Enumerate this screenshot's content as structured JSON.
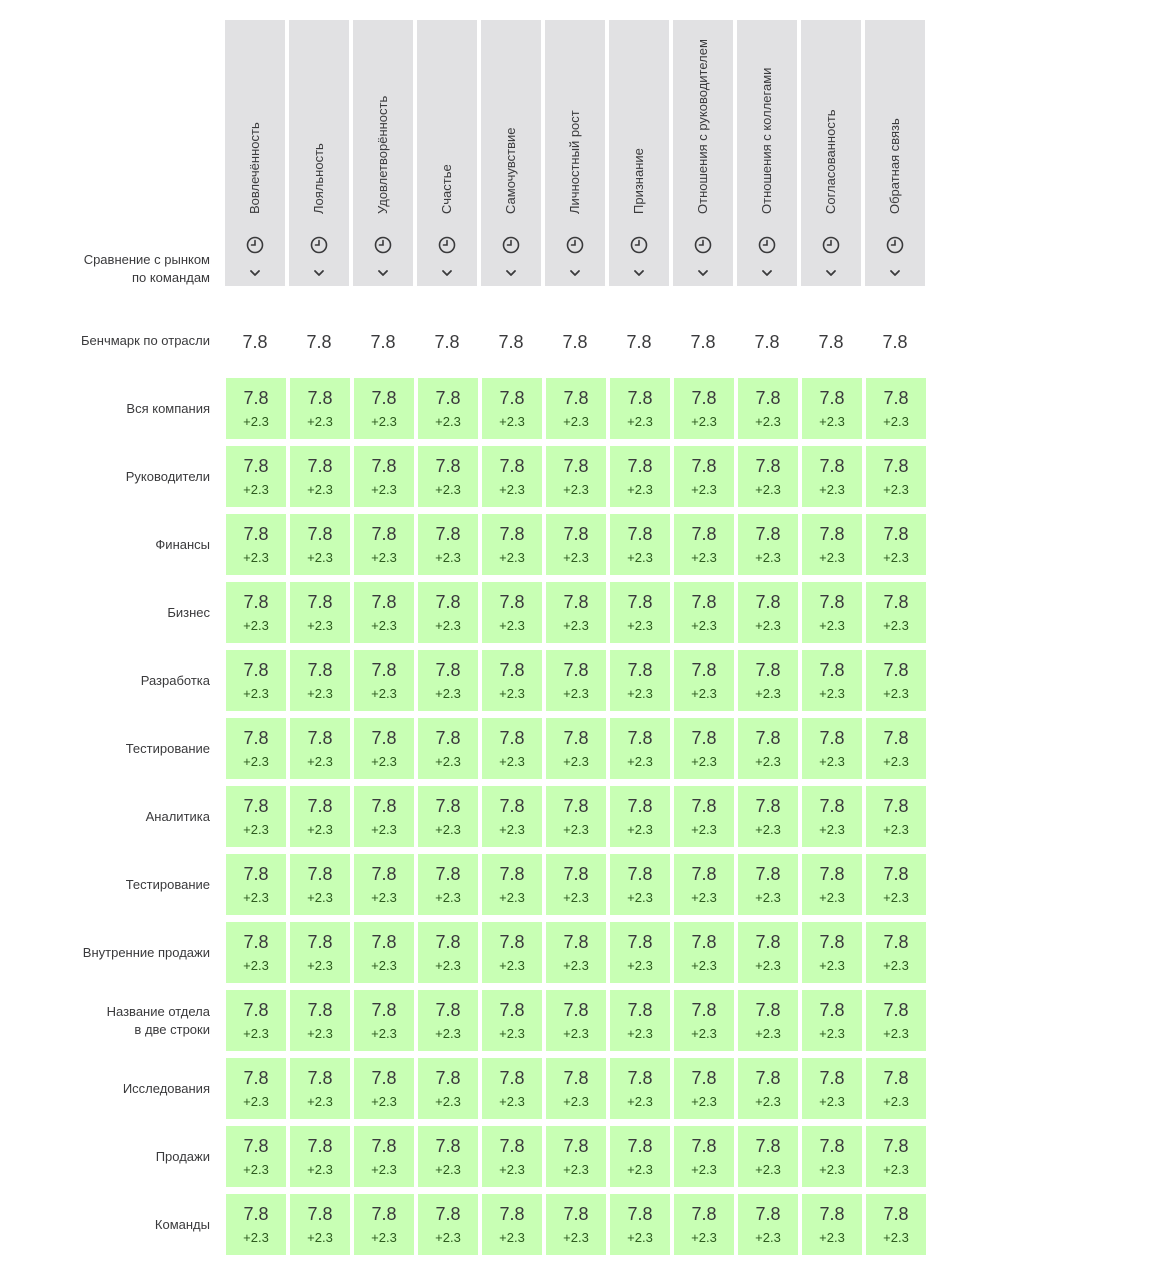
{
  "corner_label": "Сравнение с рынком\nпо командам",
  "columns": [
    "Вовлечённость",
    "Лояльность",
    "Удовлетворённость",
    "Счастье",
    "Самочувствие",
    "Личностный рост",
    "Признание",
    "Отношения с руководителем",
    "Отношения с коллегами",
    "Согласованность",
    "Обратная связь"
  ],
  "column_icons": [
    "clock-icon",
    "chevron-down-icon"
  ],
  "benchmark": {
    "label": "Бенчмарк по отрасли",
    "values": [
      "7.8",
      "7.8",
      "7.8",
      "7.8",
      "7.8",
      "7.8",
      "7.8",
      "7.8",
      "7.8",
      "7.8",
      "7.8"
    ]
  },
  "rows": [
    {
      "label": "Вся компания",
      "cells": [
        {
          "v": "7.8",
          "d": "+2.3"
        },
        {
          "v": "7.8",
          "d": "+2.3"
        },
        {
          "v": "7.8",
          "d": "+2.3"
        },
        {
          "v": "7.8",
          "d": "+2.3"
        },
        {
          "v": "7.8",
          "d": "+2.3"
        },
        {
          "v": "7.8",
          "d": "+2.3"
        },
        {
          "v": "7.8",
          "d": "+2.3"
        },
        {
          "v": "7.8",
          "d": "+2.3"
        },
        {
          "v": "7.8",
          "d": "+2.3"
        },
        {
          "v": "7.8",
          "d": "+2.3"
        },
        {
          "v": "7.8",
          "d": "+2.3"
        }
      ]
    },
    {
      "label": "Руководители",
      "cells": [
        {
          "v": "7.8",
          "d": "+2.3"
        },
        {
          "v": "7.8",
          "d": "+2.3"
        },
        {
          "v": "7.8",
          "d": "+2.3"
        },
        {
          "v": "7.8",
          "d": "+2.3"
        },
        {
          "v": "7.8",
          "d": "+2.3"
        },
        {
          "v": "7.8",
          "d": "+2.3"
        },
        {
          "v": "7.8",
          "d": "+2.3"
        },
        {
          "v": "7.8",
          "d": "+2.3"
        },
        {
          "v": "7.8",
          "d": "+2.3"
        },
        {
          "v": "7.8",
          "d": "+2.3"
        },
        {
          "v": "7.8",
          "d": "+2.3"
        }
      ]
    },
    {
      "label": "Финансы",
      "cells": [
        {
          "v": "7.8",
          "d": "+2.3"
        },
        {
          "v": "7.8",
          "d": "+2.3"
        },
        {
          "v": "7.8",
          "d": "+2.3"
        },
        {
          "v": "7.8",
          "d": "+2.3"
        },
        {
          "v": "7.8",
          "d": "+2.3"
        },
        {
          "v": "7.8",
          "d": "+2.3"
        },
        {
          "v": "7.8",
          "d": "+2.3"
        },
        {
          "v": "7.8",
          "d": "+2.3"
        },
        {
          "v": "7.8",
          "d": "+2.3"
        },
        {
          "v": "7.8",
          "d": "+2.3"
        },
        {
          "v": "7.8",
          "d": "+2.3"
        }
      ]
    },
    {
      "label": "Бизнес",
      "cells": [
        {
          "v": "7.8",
          "d": "+2.3"
        },
        {
          "v": "7.8",
          "d": "+2.3"
        },
        {
          "v": "7.8",
          "d": "+2.3"
        },
        {
          "v": "7.8",
          "d": "+2.3"
        },
        {
          "v": "7.8",
          "d": "+2.3"
        },
        {
          "v": "7.8",
          "d": "+2.3"
        },
        {
          "v": "7.8",
          "d": "+2.3"
        },
        {
          "v": "7.8",
          "d": "+2.3"
        },
        {
          "v": "7.8",
          "d": "+2.3"
        },
        {
          "v": "7.8",
          "d": "+2.3"
        },
        {
          "v": "7.8",
          "d": "+2.3"
        }
      ]
    },
    {
      "label": "Разработка",
      "cells": [
        {
          "v": "7.8",
          "d": "+2.3"
        },
        {
          "v": "7.8",
          "d": "+2.3"
        },
        {
          "v": "7.8",
          "d": "+2.3"
        },
        {
          "v": "7.8",
          "d": "+2.3"
        },
        {
          "v": "7.8",
          "d": "+2.3"
        },
        {
          "v": "7.8",
          "d": "+2.3"
        },
        {
          "v": "7.8",
          "d": "+2.3"
        },
        {
          "v": "7.8",
          "d": "+2.3"
        },
        {
          "v": "7.8",
          "d": "+2.3"
        },
        {
          "v": "7.8",
          "d": "+2.3"
        },
        {
          "v": "7.8",
          "d": "+2.3"
        }
      ]
    },
    {
      "label": "Тестирование",
      "cells": [
        {
          "v": "7.8",
          "d": "+2.3"
        },
        {
          "v": "7.8",
          "d": "+2.3"
        },
        {
          "v": "7.8",
          "d": "+2.3"
        },
        {
          "v": "7.8",
          "d": "+2.3"
        },
        {
          "v": "7.8",
          "d": "+2.3"
        },
        {
          "v": "7.8",
          "d": "+2.3"
        },
        {
          "v": "7.8",
          "d": "+2.3"
        },
        {
          "v": "7.8",
          "d": "+2.3"
        },
        {
          "v": "7.8",
          "d": "+2.3"
        },
        {
          "v": "7.8",
          "d": "+2.3"
        },
        {
          "v": "7.8",
          "d": "+2.3"
        }
      ]
    },
    {
      "label": "Аналитика",
      "cells": [
        {
          "v": "7.8",
          "d": "+2.3"
        },
        {
          "v": "7.8",
          "d": "+2.3"
        },
        {
          "v": "7.8",
          "d": "+2.3"
        },
        {
          "v": "7.8",
          "d": "+2.3"
        },
        {
          "v": "7.8",
          "d": "+2.3"
        },
        {
          "v": "7.8",
          "d": "+2.3"
        },
        {
          "v": "7.8",
          "d": "+2.3"
        },
        {
          "v": "7.8",
          "d": "+2.3"
        },
        {
          "v": "7.8",
          "d": "+2.3"
        },
        {
          "v": "7.8",
          "d": "+2.3"
        },
        {
          "v": "7.8",
          "d": "+2.3"
        }
      ]
    },
    {
      "label": "Тестирование",
      "cells": [
        {
          "v": "7.8",
          "d": "+2.3"
        },
        {
          "v": "7.8",
          "d": "+2.3"
        },
        {
          "v": "7.8",
          "d": "+2.3"
        },
        {
          "v": "7.8",
          "d": "+2.3"
        },
        {
          "v": "7.8",
          "d": "+2.3"
        },
        {
          "v": "7.8",
          "d": "+2.3"
        },
        {
          "v": "7.8",
          "d": "+2.3"
        },
        {
          "v": "7.8",
          "d": "+2.3"
        },
        {
          "v": "7.8",
          "d": "+2.3"
        },
        {
          "v": "7.8",
          "d": "+2.3"
        },
        {
          "v": "7.8",
          "d": "+2.3"
        }
      ]
    },
    {
      "label": "Внутренние продажи",
      "cells": [
        {
          "v": "7.8",
          "d": "+2.3"
        },
        {
          "v": "7.8",
          "d": "+2.3"
        },
        {
          "v": "7.8",
          "d": "+2.3"
        },
        {
          "v": "7.8",
          "d": "+2.3"
        },
        {
          "v": "7.8",
          "d": "+2.3"
        },
        {
          "v": "7.8",
          "d": "+2.3"
        },
        {
          "v": "7.8",
          "d": "+2.3"
        },
        {
          "v": "7.8",
          "d": "+2.3"
        },
        {
          "v": "7.8",
          "d": "+2.3"
        },
        {
          "v": "7.8",
          "d": "+2.3"
        },
        {
          "v": "7.8",
          "d": "+2.3"
        }
      ]
    },
    {
      "label": "Название отдела\nв две строки",
      "cells": [
        {
          "v": "7.8",
          "d": "+2.3"
        },
        {
          "v": "7.8",
          "d": "+2.3"
        },
        {
          "v": "7.8",
          "d": "+2.3"
        },
        {
          "v": "7.8",
          "d": "+2.3"
        },
        {
          "v": "7.8",
          "d": "+2.3"
        },
        {
          "v": "7.8",
          "d": "+2.3"
        },
        {
          "v": "7.8",
          "d": "+2.3"
        },
        {
          "v": "7.8",
          "d": "+2.3"
        },
        {
          "v": "7.8",
          "d": "+2.3"
        },
        {
          "v": "7.8",
          "d": "+2.3"
        },
        {
          "v": "7.8",
          "d": "+2.3"
        }
      ]
    },
    {
      "label": "Исследования",
      "cells": [
        {
          "v": "7.8",
          "d": "+2.3"
        },
        {
          "v": "7.8",
          "d": "+2.3"
        },
        {
          "v": "7.8",
          "d": "+2.3"
        },
        {
          "v": "7.8",
          "d": "+2.3"
        },
        {
          "v": "7.8",
          "d": "+2.3"
        },
        {
          "v": "7.8",
          "d": "+2.3"
        },
        {
          "v": "7.8",
          "d": "+2.3"
        },
        {
          "v": "7.8",
          "d": "+2.3"
        },
        {
          "v": "7.8",
          "d": "+2.3"
        },
        {
          "v": "7.8",
          "d": "+2.3"
        },
        {
          "v": "7.8",
          "d": "+2.3"
        }
      ]
    },
    {
      "label": "Продажи",
      "cells": [
        {
          "v": "7.8",
          "d": "+2.3"
        },
        {
          "v": "7.8",
          "d": "+2.3"
        },
        {
          "v": "7.8",
          "d": "+2.3"
        },
        {
          "v": "7.8",
          "d": "+2.3"
        },
        {
          "v": "7.8",
          "d": "+2.3"
        },
        {
          "v": "7.8",
          "d": "+2.3"
        },
        {
          "v": "7.8",
          "d": "+2.3"
        },
        {
          "v": "7.8",
          "d": "+2.3"
        },
        {
          "v": "7.8",
          "d": "+2.3"
        },
        {
          "v": "7.8",
          "d": "+2.3"
        },
        {
          "v": "7.8",
          "d": "+2.3"
        }
      ]
    },
    {
      "label": "Команды",
      "cells": [
        {
          "v": "7.8",
          "d": "+2.3"
        },
        {
          "v": "7.8",
          "d": "+2.3"
        },
        {
          "v": "7.8",
          "d": "+2.3"
        },
        {
          "v": "7.8",
          "d": "+2.3"
        },
        {
          "v": "7.8",
          "d": "+2.3"
        },
        {
          "v": "7.8",
          "d": "+2.3"
        },
        {
          "v": "7.8",
          "d": "+2.3"
        },
        {
          "v": "7.8",
          "d": "+2.3"
        },
        {
          "v": "7.8",
          "d": "+2.3"
        },
        {
          "v": "7.8",
          "d": "+2.3"
        },
        {
          "v": "7.8",
          "d": "+2.3"
        }
      ]
    }
  ],
  "colors": {
    "header_bg": "#e1e1e3",
    "cell_positive_bg": "#c8ffb4",
    "delta_text": "#2d5a1e",
    "text": "#3a3a3c"
  }
}
